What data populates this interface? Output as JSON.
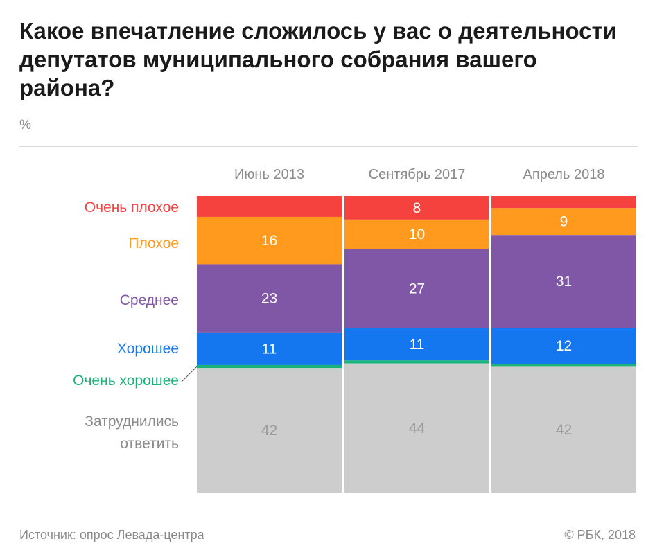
{
  "title": "Какое впечатление сложилось у вас о деятельности депутатов муниципального собрания вашего района?",
  "unit": "%",
  "footer": {
    "source": "Источник: опрос Левада-центра",
    "copyright": "© РБК, 2018"
  },
  "chart_data": {
    "type": "bar",
    "stacked": true,
    "orientation": "vertical",
    "categories": [
      "Июнь 2013",
      "Сентябрь 2017",
      "Апрель 2018"
    ],
    "series": [
      {
        "name": "Очень плохое",
        "color": "#f5423f",
        "values": [
          7,
          8,
          4
        ],
        "labels": [
          "",
          "8",
          ""
        ]
      },
      {
        "name": "Плохое",
        "color": "#ff9a1f",
        "values": [
          16,
          10,
          9
        ],
        "labels": [
          "16",
          "10",
          "9"
        ]
      },
      {
        "name": "Среднее",
        "color": "#7f57a6",
        "values": [
          23,
          27,
          31
        ],
        "labels": [
          "23",
          "27",
          "31"
        ]
      },
      {
        "name": "Хорошее",
        "color": "#1577f0",
        "values": [
          11,
          11,
          12
        ],
        "labels": [
          "11",
          "11",
          "12"
        ]
      },
      {
        "name": "Очень хорошее",
        "color": "#19b37a",
        "values": [
          1,
          1,
          1
        ],
        "labels": [
          "",
          "",
          ""
        ]
      },
      {
        "name": "Затруднились ответить",
        "color": "#cdcdcd",
        "values": [
          42,
          44,
          42
        ],
        "labels": [
          "42",
          "44",
          "42"
        ]
      }
    ],
    "legend_position": "left",
    "label_colors": {
      "Затруднились ответить": "#9a9a9a"
    },
    "ylim": [
      0,
      100
    ],
    "grid": false
  }
}
